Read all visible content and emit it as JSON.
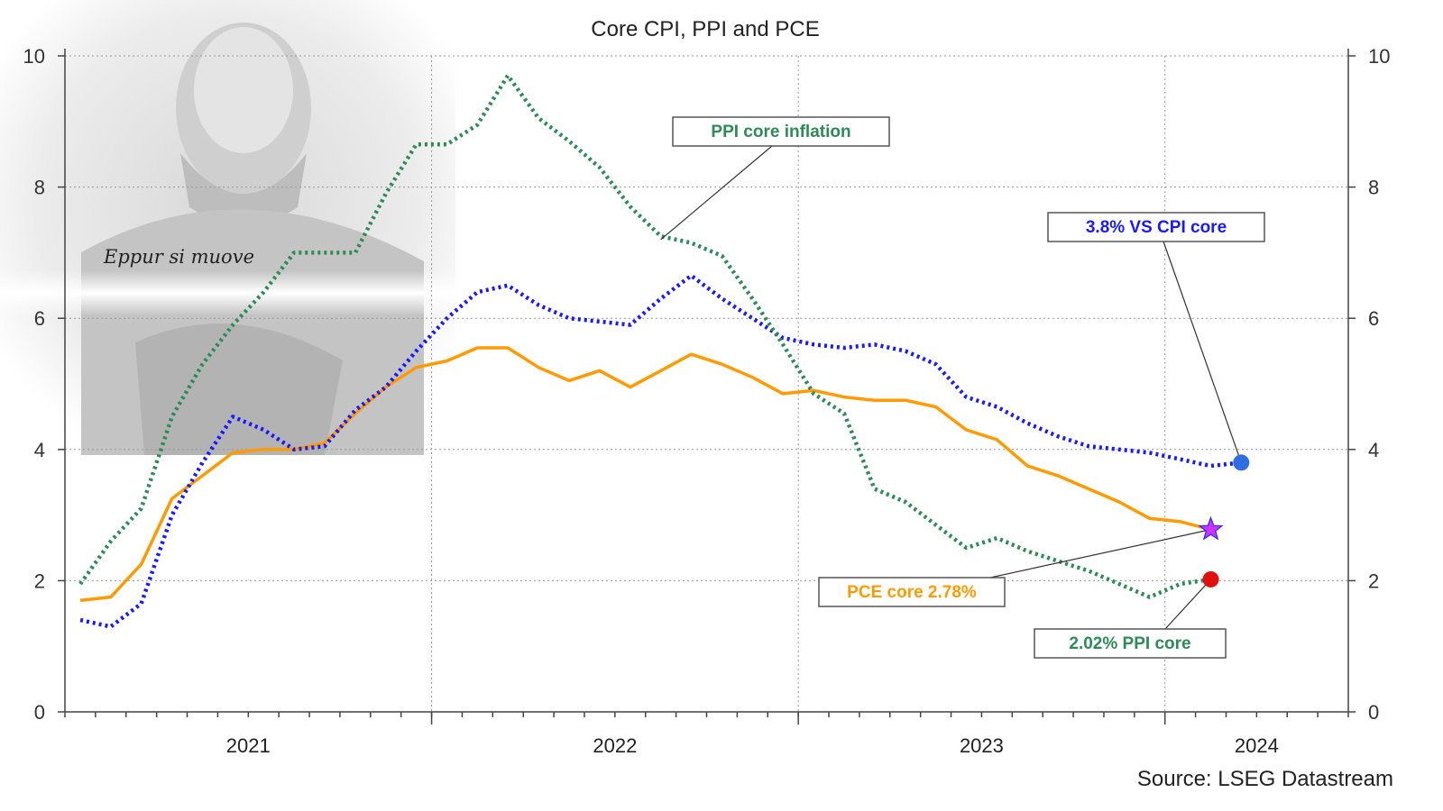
{
  "chart_data": {
    "type": "line",
    "title": "Core CPI, PPI and PCE",
    "source": "Source: LSEG Datastream",
    "ylim": [
      0,
      10
    ],
    "y_ticks": [
      0,
      2,
      4,
      6,
      8,
      10
    ],
    "x_year_labels": [
      "2021",
      "2022",
      "2023",
      "2024"
    ],
    "x_range": [
      2020.5,
      2024.0
    ],
    "grid": "vertical and horizontal dotted",
    "image_caption": "Eppur si muove",
    "series": [
      {
        "key": "cpi",
        "color": "#1a1aff",
        "style": "dotted",
        "points": [
          [
            2020.542,
            1.4
          ],
          [
            2020.625,
            1.3
          ],
          [
            2020.708,
            1.65
          ],
          [
            2020.792,
            3.0
          ],
          [
            2020.875,
            3.8
          ],
          [
            2020.958,
            4.5
          ],
          [
            2021.042,
            4.3
          ],
          [
            2021.125,
            4.0
          ],
          [
            2021.208,
            4.05
          ],
          [
            2021.292,
            4.6
          ],
          [
            2021.375,
            4.95
          ],
          [
            2021.458,
            5.5
          ],
          [
            2021.542,
            6.0
          ],
          [
            2021.625,
            6.4
          ],
          [
            2021.708,
            6.5
          ],
          [
            2021.792,
            6.2
          ],
          [
            2021.875,
            6.0
          ],
          [
            2021.958,
            5.95
          ],
          [
            2022.042,
            5.9
          ],
          [
            2022.125,
            6.3
          ],
          [
            2022.208,
            6.65
          ],
          [
            2022.292,
            6.3
          ],
          [
            2022.375,
            6.0
          ],
          [
            2022.458,
            5.7
          ],
          [
            2022.542,
            5.6
          ],
          [
            2022.625,
            5.55
          ],
          [
            2022.708,
            5.6
          ],
          [
            2022.792,
            5.5
          ],
          [
            2022.875,
            5.3
          ],
          [
            2022.958,
            4.8
          ],
          [
            2023.042,
            4.65
          ],
          [
            2023.125,
            4.4
          ],
          [
            2023.208,
            4.2
          ],
          [
            2023.292,
            4.05
          ],
          [
            2023.375,
            4.0
          ],
          [
            2023.458,
            3.95
          ],
          [
            2023.542,
            3.85
          ],
          [
            2023.625,
            3.75
          ],
          [
            2023.708,
            3.8
          ]
        ]
      },
      {
        "key": "pce",
        "color": "#ff9a00",
        "style": "solid",
        "points": [
          [
            2020.542,
            1.7
          ],
          [
            2020.625,
            1.75
          ],
          [
            2020.708,
            2.25
          ],
          [
            2020.792,
            3.25
          ],
          [
            2020.875,
            3.6
          ],
          [
            2020.958,
            3.95
          ],
          [
            2021.042,
            4.0
          ],
          [
            2021.125,
            4.0
          ],
          [
            2021.208,
            4.1
          ],
          [
            2021.292,
            4.55
          ],
          [
            2021.375,
            4.95
          ],
          [
            2021.458,
            5.25
          ],
          [
            2021.542,
            5.35
          ],
          [
            2021.625,
            5.55
          ],
          [
            2021.708,
            5.55
          ],
          [
            2021.792,
            5.25
          ],
          [
            2021.875,
            5.05
          ],
          [
            2021.958,
            5.2
          ],
          [
            2022.042,
            4.95
          ],
          [
            2022.125,
            5.2
          ],
          [
            2022.208,
            5.45
          ],
          [
            2022.292,
            5.3
          ],
          [
            2022.375,
            5.1
          ],
          [
            2022.458,
            4.85
          ],
          [
            2022.542,
            4.9
          ],
          [
            2022.625,
            4.8
          ],
          [
            2022.708,
            4.75
          ],
          [
            2022.792,
            4.75
          ],
          [
            2022.875,
            4.65
          ],
          [
            2022.958,
            4.3
          ],
          [
            2023.042,
            4.15
          ],
          [
            2023.125,
            3.75
          ],
          [
            2023.208,
            3.6
          ],
          [
            2023.292,
            3.4
          ],
          [
            2023.375,
            3.2
          ],
          [
            2023.458,
            2.95
          ],
          [
            2023.542,
            2.9
          ],
          [
            2023.625,
            2.78
          ]
        ]
      },
      {
        "key": "ppi",
        "color": "#2e8b57",
        "style": "dotted",
        "points": [
          [
            2020.542,
            1.95
          ],
          [
            2020.625,
            2.6
          ],
          [
            2020.708,
            3.1
          ],
          [
            2020.792,
            4.5
          ],
          [
            2020.875,
            5.3
          ],
          [
            2020.958,
            5.9
          ],
          [
            2021.042,
            6.4
          ],
          [
            2021.125,
            7.0
          ],
          [
            2021.208,
            7.0
          ],
          [
            2021.292,
            7.0
          ],
          [
            2021.375,
            7.9
          ],
          [
            2021.458,
            8.65
          ],
          [
            2021.542,
            8.65
          ],
          [
            2021.625,
            8.95
          ],
          [
            2021.708,
            9.7
          ],
          [
            2021.792,
            9.05
          ],
          [
            2021.875,
            8.7
          ],
          [
            2021.958,
            8.3
          ],
          [
            2022.042,
            7.7
          ],
          [
            2022.125,
            7.25
          ],
          [
            2022.208,
            7.15
          ],
          [
            2022.292,
            6.95
          ],
          [
            2022.375,
            6.3
          ],
          [
            2022.458,
            5.6
          ],
          [
            2022.542,
            4.85
          ],
          [
            2022.625,
            4.55
          ],
          [
            2022.708,
            3.4
          ],
          [
            2022.792,
            3.2
          ],
          [
            2022.875,
            2.85
          ],
          [
            2022.958,
            2.5
          ],
          [
            2023.042,
            2.65
          ],
          [
            2023.125,
            2.45
          ],
          [
            2023.208,
            2.3
          ],
          [
            2023.292,
            2.15
          ],
          [
            2023.375,
            1.95
          ],
          [
            2023.458,
            1.75
          ],
          [
            2023.542,
            1.95
          ],
          [
            2023.625,
            2.02
          ]
        ]
      }
    ],
    "annotations": [
      {
        "key": "ppi_label",
        "text": "PPI core inflation",
        "color": "#2e8b57",
        "target": [
          2022.125,
          7.2
        ]
      },
      {
        "key": "cpi_label",
        "text": "3.8% VS CPI core",
        "color": "#1a1aff",
        "target": [
          2023.708,
          3.8
        ]
      },
      {
        "key": "pce_label",
        "text": "PCE core 2.78%",
        "color": "#ff9a00",
        "target": [
          2023.625,
          2.78
        ]
      },
      {
        "key": "ppi_end_label",
        "text": "2.02% PPI core",
        "color": "#2e8b57",
        "target": [
          2023.625,
          2.02
        ]
      }
    ],
    "end_markers": [
      {
        "key": "cpi_end",
        "shape": "circle",
        "color": "#2f6de0",
        "x": 2023.708,
        "y": 3.8
      },
      {
        "key": "pce_end",
        "shape": "star",
        "color": "#cc33ff",
        "x": 2023.625,
        "y": 2.78
      },
      {
        "key": "ppi_end",
        "shape": "circle",
        "color": "#e01010",
        "x": 2023.625,
        "y": 2.02
      }
    ]
  }
}
